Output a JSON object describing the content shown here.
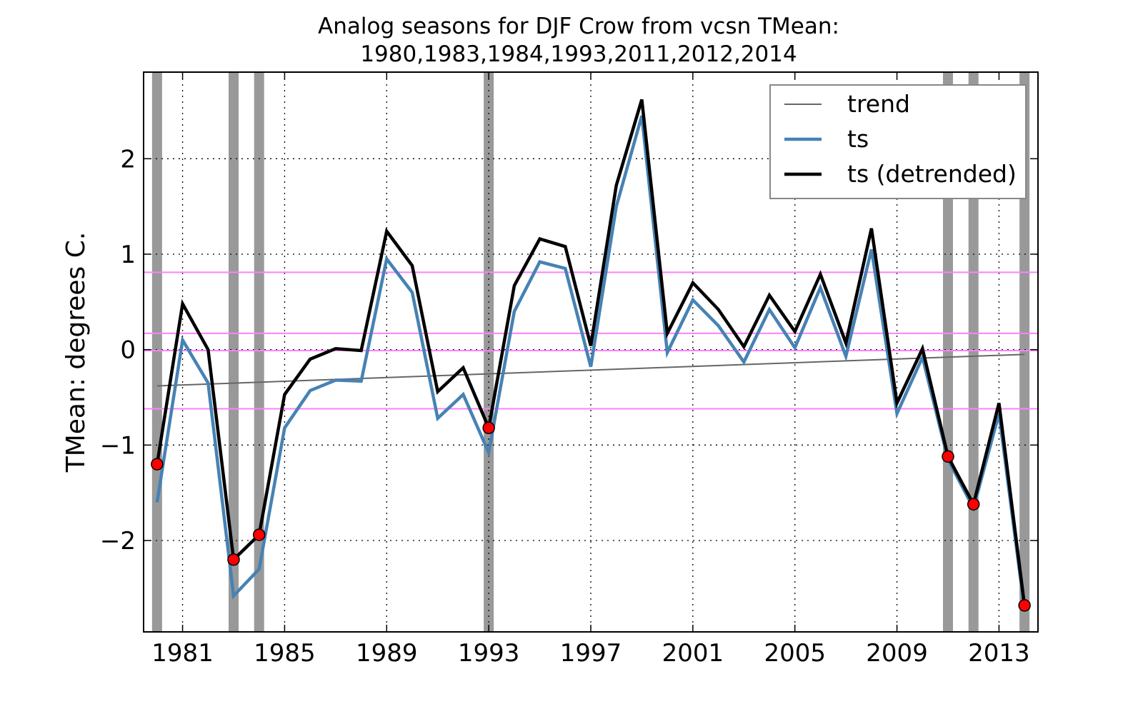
{
  "chart_data": {
    "type": "line",
    "title": "Analog seasons for DJF Crow from vcsn TMean:",
    "subtitle": "1980,1983,1984,1993,2011,2012,2014",
    "ylabel": "TMean: degrees C.",
    "xlabel": "",
    "xlim": [
      1979.5,
      2014.5
    ],
    "ylim": [
      -2.95,
      2.9
    ],
    "xticks": [
      1981,
      1985,
      1989,
      1993,
      1997,
      2001,
      2005,
      2009,
      2013
    ],
    "yticks": [
      -2,
      -1,
      0,
      1,
      2
    ],
    "ytick_labels": [
      "−2",
      "−1",
      "0",
      "1",
      "2"
    ],
    "grid": true,
    "legend_position": "top-right",
    "x": [
      1980,
      1981,
      1982,
      1983,
      1984,
      1985,
      1986,
      1987,
      1988,
      1989,
      1990,
      1991,
      1992,
      1993,
      1994,
      1995,
      1996,
      1997,
      1998,
      1999,
      2000,
      2001,
      2002,
      2003,
      2004,
      2005,
      2006,
      2007,
      2008,
      2009,
      2010,
      2011,
      2012,
      2013,
      2014
    ],
    "series": [
      {
        "name": "trend",
        "color": "#666666",
        "values_start_end": [
          [
            1980,
            -0.38
          ],
          [
            2014,
            -0.05
          ]
        ]
      },
      {
        "name": "ts",
        "color": "#4682b4",
        "values": [
          -1.6,
          0.1,
          -0.35,
          -2.58,
          -2.3,
          -0.82,
          -0.43,
          -0.32,
          -0.33,
          0.95,
          0.6,
          -0.72,
          -0.47,
          -1.08,
          0.4,
          0.92,
          0.85,
          -0.18,
          1.5,
          2.45,
          -0.03,
          0.52,
          0.25,
          -0.13,
          0.42,
          0.02,
          0.65,
          -0.07,
          1.05,
          -0.67,
          -0.08,
          -1.15,
          -1.66,
          -0.67,
          -2.72
        ]
      },
      {
        "name": "ts (detrended)",
        "color": "#000000",
        "values": [
          -1.2,
          0.48,
          0.0,
          -2.2,
          -1.94,
          -0.47,
          -0.1,
          0.01,
          -0.01,
          1.24,
          0.88,
          -0.44,
          -0.19,
          -0.82,
          0.67,
          1.16,
          1.08,
          0.04,
          1.72,
          2.62,
          0.17,
          0.7,
          0.42,
          0.03,
          0.57,
          0.19,
          0.79,
          0.07,
          1.27,
          -0.56,
          0.01,
          -1.12,
          -1.62,
          -0.56,
          -2.68
        ]
      }
    ],
    "analog_years": [
      1980,
      1983,
      1984,
      1993,
      2011,
      2012,
      2014
    ],
    "analog_marker_color": "#ff0000",
    "band_color": "#999999",
    "band_color_light": "#c8c8c8",
    "quantile_lines": [
      0.81,
      0.17,
      -0.01,
      -0.62
    ],
    "quantile_color": "#ff80ff"
  }
}
